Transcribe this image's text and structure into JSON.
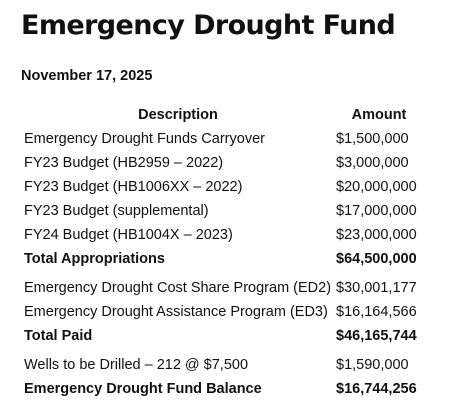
{
  "title": "Emergency Drought Fund",
  "date": "November 17, 2025",
  "header": {
    "description": "Description",
    "amount": "Amount"
  },
  "appropriations": [
    {
      "description": "Emergency Drought Funds Carryover",
      "amount": "$1,500,000"
    },
    {
      "description": "FY23 Budget (HB2959 – 2022)",
      "amount": "$3,000,000"
    },
    {
      "description": "FY23 Budget (HB1006XX – 2022)",
      "amount": "$20,000,000"
    },
    {
      "description": "FY23 Budget (supplemental)",
      "amount": "$17,000,000"
    },
    {
      "description": "FY24 Budget (HB1004X – 2023)",
      "amount": "$23,000,000"
    }
  ],
  "total_appropriations": {
    "description": "Total Appropriations",
    "amount": "$64,500,000"
  },
  "paid": [
    {
      "description": "Emergency Drought Cost Share Program (ED2)",
      "amount": "$30,001,177"
    },
    {
      "description": "Emergency Drought Assistance Program (ED3)",
      "amount": "$16,164,566"
    }
  ],
  "total_paid": {
    "description": "Total Paid",
    "amount": "$46,165,744"
  },
  "wells": {
    "description": "Wells to be Drilled – 212 @ $7,500",
    "amount": "$1,590,000"
  },
  "balance": {
    "description": "Emergency Drought Fund Balance",
    "amount": "$16,744,256"
  }
}
